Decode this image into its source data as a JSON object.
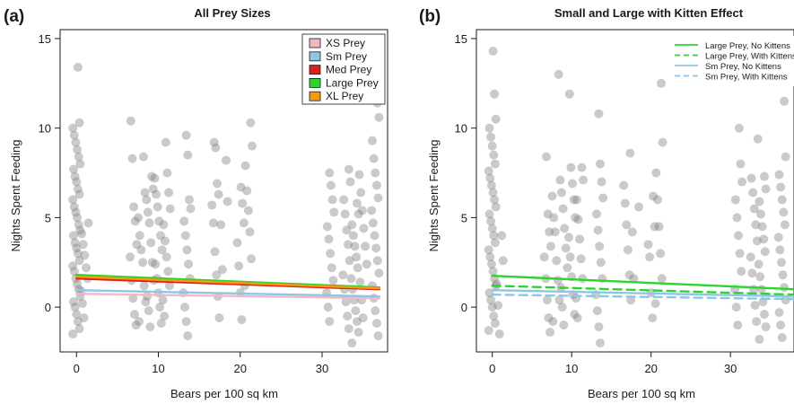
{
  "chart_data": [
    {
      "panel": "(a)",
      "type": "scatter",
      "title": "All Prey Sizes",
      "xlabel": "Bears per 100 sq km",
      "ylabel": "Nights Spent Feeding",
      "xlim": [
        -2,
        38
      ],
      "ylim": [
        -2.5,
        15.5
      ],
      "xticks": [
        0,
        10,
        20,
        30
      ],
      "yticks": [
        0,
        5,
        10,
        15
      ],
      "grid": false,
      "legend_position": "top-right",
      "point_color": "#808080",
      "scatter_columns": [
        {
          "x": 0,
          "y": [
            -1.5,
            -1.2,
            -0.8,
            -0.4,
            0,
            0.3,
            0.6,
            1,
            1.3,
            1.6,
            2,
            2.3,
            2.6,
            3,
            3.3,
            3.6,
            4,
            4.3,
            4.6,
            5,
            5.3,
            5.6,
            6,
            6.3,
            6.6,
            7,
            7.3,
            7.7,
            8,
            8.4,
            8.8,
            9.2,
            9.6,
            10,
            10.3,
            13.4
          ]
        },
        {
          "x": 1,
          "y": [
            -0.6,
            0.2,
            0.9,
            1.6,
            2.2,
            2.9,
            3.5,
            4.1,
            4.7
          ]
        },
        {
          "x": 7,
          "y": [
            -1,
            -0.4,
            0.5,
            1.5,
            2.8,
            3.5,
            4.8,
            5.6,
            8.3,
            10.4
          ]
        },
        {
          "x": 8,
          "y": [
            -0.8,
            0.3,
            1.2,
            2.5,
            3.2,
            4,
            5,
            6.4,
            8.4
          ]
        },
        {
          "x": 9,
          "y": [
            -1.1,
            -0.2,
            0.6,
            1.5,
            2.5,
            3.6,
            4.7,
            5.3,
            6,
            6.6,
            7.3
          ]
        },
        {
          "x": 10,
          "y": [
            -0.9,
            0,
            0.8,
            1.6,
            2.4,
            3.2,
            4,
            4.8,
            5.6,
            6.3,
            7.2
          ]
        },
        {
          "x": 11,
          "y": [
            -0.5,
            0.4,
            1.2,
            2,
            2.8,
            3.7,
            4.6,
            5.5,
            6.4,
            7.5,
            9.2
          ]
        },
        {
          "x": 13.5,
          "y": [
            -1.6,
            -0.8,
            0,
            0.8,
            1.6,
            2.4,
            3.2,
            4,
            4.8,
            5.5,
            6,
            8.5,
            9.6
          ]
        },
        {
          "x": 17,
          "y": [
            -0.6,
            0.6,
            1.8,
            3.1,
            4.7,
            5.7,
            6.3,
            6.9,
            8.9,
            9.2
          ]
        },
        {
          "x": 18,
          "y": [
            2.1,
            4.6,
            5.9,
            8.2
          ]
        },
        {
          "x": 20,
          "y": [
            -0.7,
            0.8,
            2.3,
            3.6,
            4.7,
            5.8,
            6.7
          ]
        },
        {
          "x": 21,
          "y": [
            1.2,
            2.7,
            4.2,
            5.4,
            6.5,
            7.9,
            9,
            10.3
          ]
        },
        {
          "x": 31,
          "y": [
            -0.8,
            0,
            0.8,
            1.5,
            2.2,
            3,
            3.8,
            4.5,
            5.3,
            6,
            6.8,
            7.5
          ]
        },
        {
          "x": 33,
          "y": [
            -1.2,
            -0.5,
            0.3,
            1,
            1.8,
            2.6,
            3.5,
            4.3,
            5.2,
            6,
            7,
            7.7
          ]
        },
        {
          "x": 34,
          "y": [
            -2,
            -1.4,
            -0.8,
            -0.2,
            0.4,
            1,
            1.6,
            2.2,
            2.8,
            3.4,
            4,
            4.6,
            5.2,
            5.8
          ]
        },
        {
          "x": 35,
          "y": [
            -0.6,
            0.4,
            1.4,
            2.4,
            3.4,
            4.4,
            5.4,
            6.4,
            7.4
          ]
        },
        {
          "x": 36.5,
          "y": [
            -1.6,
            -0.9,
            -0.2,
            0.5,
            1.2,
            1.9,
            2.6,
            3.3,
            4,
            4.7,
            5.4,
            6.1,
            6.8,
            7.5,
            8.3,
            9.3,
            10.6,
            11.4
          ]
        }
      ],
      "series": [
        {
          "name": "XS Prey",
          "color": "#f2b8c6",
          "dash": "solid",
          "x": [
            0,
            37
          ],
          "y": [
            0.75,
            0.5
          ]
        },
        {
          "name": "Sm Prey",
          "color": "#8ec6e6",
          "dash": "solid",
          "x": [
            0,
            37
          ],
          "y": [
            0.95,
            0.6
          ]
        },
        {
          "name": "Med Prey",
          "color": "#e01e1e",
          "dash": "solid",
          "x": [
            0,
            37
          ],
          "y": [
            1.6,
            1.0
          ]
        },
        {
          "name": "Large Prey",
          "color": "#2ed42e",
          "dash": "solid",
          "x": [
            0,
            37
          ],
          "y": [
            1.8,
            1.1
          ]
        },
        {
          "name": "XL Prey",
          "color": "#f29a12",
          "dash": "solid",
          "x": [
            0,
            37
          ],
          "y": [
            1.7,
            1.05
          ]
        }
      ]
    },
    {
      "panel": "(b)",
      "type": "scatter",
      "title": "Small and Large with Kitten Effect",
      "xlabel": "Bears per 100 sq km",
      "ylabel": "Nights Spent Feeding",
      "xlim": [
        -2,
        38
      ],
      "ylim": [
        -2.5,
        15.5
      ],
      "xticks": [
        0,
        10,
        20,
        30
      ],
      "yticks": [
        0,
        5,
        10,
        15
      ],
      "grid": false,
      "legend_position": "top-right",
      "point_color": "#808080",
      "scatter_columns": [
        {
          "x": 0,
          "y": [
            -1.3,
            -0.9,
            -0.5,
            0,
            0.4,
            0.8,
            1.2,
            1.6,
            2,
            2.4,
            2.8,
            3.2,
            3.6,
            4,
            4.4,
            4.8,
            5.2,
            5.6,
            6,
            6.4,
            6.8,
            7.2,
            7.6,
            8,
            8.5,
            9,
            9.5,
            10,
            10.5,
            11.9,
            14.3
          ]
        },
        {
          "x": 1,
          "y": [
            -1.5,
            0.1,
            1.3,
            2.6,
            4
          ]
        },
        {
          "x": 7,
          "y": [
            -1.4,
            -0.6,
            0.4,
            1.6,
            2.8,
            3.4,
            4.2,
            5.2,
            8.4
          ]
        },
        {
          "x": 8,
          "y": [
            -0.8,
            0.4,
            1.5,
            2.6,
            4.2,
            5,
            6.2,
            13
          ]
        },
        {
          "x": 9,
          "y": [
            -1,
            0,
            1.1,
            2.2,
            3.3,
            4.4,
            5.5,
            6.4,
            7.1
          ]
        },
        {
          "x": 10,
          "y": [
            -0.4,
            0.7,
            1.7,
            2.8,
            3.9,
            5,
            6,
            6.9,
            7.8,
            11.9
          ]
        },
        {
          "x": 11,
          "y": [
            -0.6,
            0.5,
            1.6,
            2.7,
            3.8,
            4.9,
            6,
            7.1,
            7.8
          ]
        },
        {
          "x": 13.5,
          "y": [
            -2,
            -1.1,
            -0.2,
            0.7,
            1.6,
            2.5,
            3.4,
            4.3,
            5.2,
            6.1,
            7,
            8,
            10.8
          ]
        },
        {
          "x": 17,
          "y": [
            0.4,
            1.8,
            3.2,
            4.6,
            5.8,
            6.8,
            8.6
          ]
        },
        {
          "x": 18,
          "y": [
            1.6,
            4.2,
            5.6
          ]
        },
        {
          "x": 20,
          "y": [
            -0.6,
            0.8,
            2.8,
            3.5,
            4.5,
            6.2
          ]
        },
        {
          "x": 21,
          "y": [
            0.2,
            1.6,
            3,
            4.5,
            6,
            7.5,
            9.2,
            12.5
          ]
        },
        {
          "x": 31,
          "y": [
            -1,
            0,
            1,
            2,
            3,
            4,
            5,
            6,
            7,
            8,
            10
          ]
        },
        {
          "x": 33,
          "y": [
            -0.8,
            0.1,
            1,
            1.9,
            2.8,
            3.7,
            4.6,
            5.5,
            6.4,
            7.2,
            9.4
          ]
        },
        {
          "x": 34,
          "y": [
            -1.8,
            -1.1,
            -0.4,
            0.3,
            1,
            1.7,
            2.4,
            3.1,
            3.8,
            4.5,
            5.2,
            5.9,
            6.6,
            7.3
          ]
        },
        {
          "x": 36.5,
          "y": [
            -1.7,
            -1,
            -0.3,
            0.4,
            1.1,
            1.8,
            2.5,
            3.2,
            3.9,
            4.6,
            5.3,
            6,
            6.7,
            7.4,
            8.4,
            11.5,
            13
          ]
        }
      ],
      "series": [
        {
          "name": "Large Prey, No Kittens",
          "color": "#2ed42e",
          "dash": "solid",
          "x": [
            0,
            38
          ],
          "y": [
            1.75,
            1.0
          ]
        },
        {
          "name": "Large Prey, With Kittens",
          "color": "#2ed42e",
          "dash": "dashed",
          "x": [
            0,
            38
          ],
          "y": [
            1.2,
            0.7
          ]
        },
        {
          "name": "Sm Prey, No Kittens",
          "color": "#8ec6e6",
          "dash": "solid",
          "x": [
            0,
            38
          ],
          "y": [
            0.95,
            0.6
          ]
        },
        {
          "name": "Sm Prey, With Kittens",
          "color": "#8ec6e6",
          "dash": "dashed",
          "x": [
            0,
            38
          ],
          "y": [
            0.7,
            0.45
          ]
        }
      ]
    }
  ]
}
